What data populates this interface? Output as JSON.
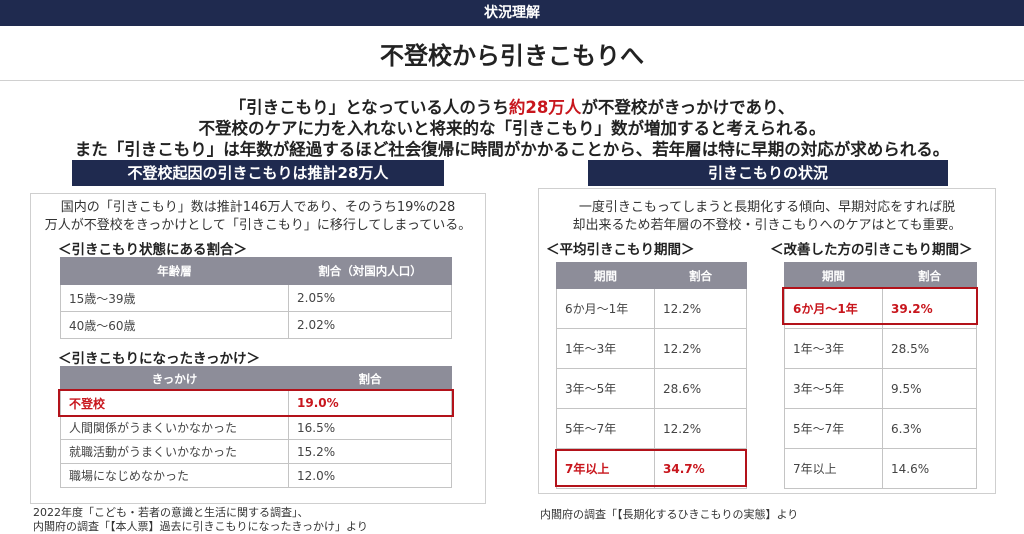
{
  "header": {
    "category": "状況理解",
    "title": "不登校から引きこもりへ"
  },
  "summary": {
    "line1_pre": "「引きこもり」となっている人のうち",
    "line1_highlight": "約28万人",
    "line1_post": "が不登校がきっかけであり、",
    "line2": "不登校のケアに力を入れないと将来的な「引きこもり」数が増加すると考えられる。",
    "line3": "また「引きこもり」は年数が経過するほど社会復帰に時間がかかることから、若年層は特に早期の対応が求められる。"
  },
  "left": {
    "band": "不登校起因の引きこもりは推計28万人",
    "para1": "国内の「引きこもり」数は推計146万人であり、そのうち19%の28",
    "para2": "万人が不登校をきっかけとして「引きこもり」に移行してしまっている。",
    "table1": {
      "heading": "＜引きこもり状態にある割合＞",
      "headers": [
        "年齢層",
        "割合（対国内人口）"
      ],
      "rows": [
        [
          "15歳〜39歳",
          "2.05%"
        ],
        [
          "40歳〜60歳",
          "2.02%"
        ]
      ]
    },
    "table2": {
      "heading": "＜引きこもりになったきっかけ＞",
      "headers": [
        "きっかけ",
        "割合"
      ],
      "rows": [
        [
          "不登校",
          "19.0%"
        ],
        [
          "人間関係がうまくいかなかった",
          "16.5%"
        ],
        [
          "就職活動がうまくいかなかった",
          "15.2%"
        ],
        [
          "職場になじめなかった",
          "12.0%"
        ]
      ]
    },
    "source1": "2022年度「こども・若者の意識と生活に関する調査」、",
    "source2": "内閣府の調査「【本人票】過去に引きこもりになったきっかけ」より"
  },
  "right": {
    "band": "引きこもりの状況",
    "para1": "一度引きこもってしまうと長期化する傾向、早期対応をすれば脱",
    "para2": "却出来るため若年層の不登校・引きこもりへのケアはとても重要。",
    "table3": {
      "heading": "＜平均引きこもり期間＞",
      "headers": [
        "期間",
        "割合"
      ],
      "rows": [
        [
          "6か月〜1年",
          "12.2%"
        ],
        [
          "1年〜3年",
          "12.2%"
        ],
        [
          "3年〜5年",
          "28.6%"
        ],
        [
          "5年〜7年",
          "12.2%"
        ],
        [
          "7年以上",
          "34.7%"
        ]
      ]
    },
    "table4": {
      "heading": "＜改善した方の引きこもり期間＞",
      "headers": [
        "期間",
        "割合"
      ],
      "rows": [
        [
          "6か月〜1年",
          "39.2%"
        ],
        [
          "1年〜3年",
          "28.5%"
        ],
        [
          "3年〜5年",
          "9.5%"
        ],
        [
          "5年〜7年",
          "6.3%"
        ],
        [
          "7年以上",
          "14.6%"
        ]
      ]
    },
    "source": "内閣府の調査「【長期化するひきこもりの実態】より"
  }
}
